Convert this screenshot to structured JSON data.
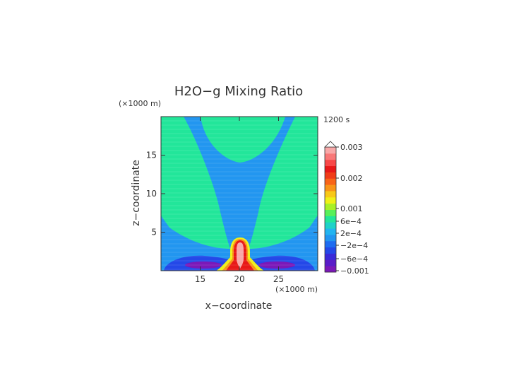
{
  "chart_data": {
    "type": "heatmap",
    "title": "H2O−g Mixing Ratio",
    "time_label": "1200 s",
    "xlabel": "x−coordinate",
    "ylabel": "z−coordinate",
    "x_unit": "(×1000 m)",
    "y_unit": "(×1000 m)",
    "xlim": [
      10,
      30
    ],
    "ylim": [
      0,
      20
    ],
    "x_ticks": [
      15,
      20,
      25
    ],
    "y_ticks": [
      5,
      10,
      15
    ],
    "colorbar": {
      "labels": [
        "0.003",
        "0.002",
        "0.001",
        "6e−4",
        "2e−4",
        "−2e−4",
        "−6e−4",
        "−0.001"
      ],
      "colors": [
        "#7b18b8",
        "#5a1cc8",
        "#3a2ad8",
        "#2448e8",
        "#1e6cf0",
        "#2296f0",
        "#22b4f0",
        "#1ed2c8",
        "#22e69a",
        "#58f05a",
        "#a8f028",
        "#f0f018",
        "#f8c818",
        "#f89418",
        "#f86418",
        "#f03c18",
        "#e81818",
        "#f84848",
        "#f87878",
        "#f8a8a8"
      ],
      "extend_top_arrow": true
    },
    "regions": [
      {
        "name": "background",
        "level": "−2e−4"
      },
      {
        "name": "upper-dome",
        "level": "2e−4"
      },
      {
        "name": "left-branch",
        "level": "2e−4"
      },
      {
        "name": "right-branch",
        "level": "2e−4"
      },
      {
        "name": "lower-band",
        "level": "−6e−4"
      },
      {
        "name": "left-min",
        "level": "−0.001"
      },
      {
        "name": "right-min",
        "level": "−0.001"
      },
      {
        "name": "plume",
        "level": "0.003",
        "center_x": 20,
        "top_z": 4
      }
    ]
  }
}
